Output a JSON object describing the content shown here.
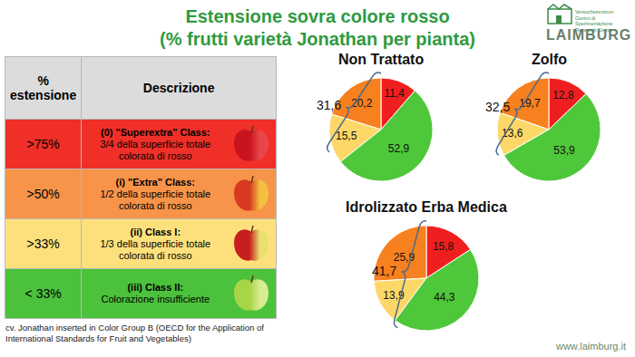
{
  "title": "Estensione sovra colore rosso",
  "subtitle": "(% frutti varietà Jonathan per pianta)",
  "logo": {
    "name": "LAIMBURG",
    "lines": [
      "Versuchszentrum",
      "Centro di Sperimentazione",
      "Research Centre"
    ]
  },
  "website": "www.laimburg.it",
  "footnote": "cv. Jonathan inserted in Color Group B (OECD for the Application of International Standards for Fruit and Vegetables)",
  "table": {
    "header": [
      "% estensione",
      "Descrizione"
    ],
    "rows": [
      {
        "extent": ">75%",
        "class": "(0) \"Superextra\" Class:",
        "description": "3/4 della superficie totale colorata di rosso",
        "color": "#ef2f28"
      },
      {
        "extent": ">50%",
        "class": "(i) \"Extra\" Class:",
        "description": "1/2 della superficie totale colorata di rosso",
        "color": "#f7944a"
      },
      {
        "extent": ">33%",
        "class": "(ii) Class I:",
        "description": "1/3 della superficie totale colorata di rosso",
        "color": "#fde07c"
      },
      {
        "extent": "< 33%",
        "class": "(iii) Class II:",
        "description": "Colorazione insufficiente",
        "color": "#4cc23c"
      }
    ]
  },
  "chart_data": [
    {
      "type": "pie",
      "title": "Non Trattato",
      "categories": [
        ">75%",
        ">50%",
        ">33%",
        "< 33%"
      ],
      "values": [
        11.4,
        20.2,
        15.5,
        52.9
      ],
      "value_labels": [
        "11,4",
        "20,2",
        "15,5",
        "52,9"
      ],
      "colors": [
        "#f01f1f",
        "#f7801f",
        "#fdd868",
        "#4fc73a"
      ],
      "data_labels": true,
      "bracket": {
        "value": 31.6,
        "label": "31,6"
      }
    },
    {
      "type": "pie",
      "title": "Zolfo",
      "categories": [
        ">75%",
        ">50%",
        ">33%",
        "< 33%"
      ],
      "values": [
        12.8,
        19.7,
        13.6,
        53.9
      ],
      "value_labels": [
        "12,8",
        "19,7",
        "13,6",
        "53,9"
      ],
      "colors": [
        "#f01f1f",
        "#f7801f",
        "#fdd868",
        "#4fc73a"
      ],
      "data_labels": true,
      "bracket": {
        "value": 32.5,
        "label": "32,5"
      }
    },
    {
      "type": "pie",
      "title": "Idrolizzato Erba Medica",
      "categories": [
        ">75%",
        ">50%",
        ">33%",
        "< 33%"
      ],
      "values": [
        15.8,
        25.9,
        13.9,
        44.3
      ],
      "value_labels": [
        "15,8",
        "25,9",
        "13,9",
        "44,3"
      ],
      "colors": [
        "#f01f1f",
        "#f7801f",
        "#fdd868",
        "#4fc73a"
      ],
      "data_labels": true,
      "bracket": {
        "value": 41.7,
        "label": "41,7"
      }
    }
  ]
}
